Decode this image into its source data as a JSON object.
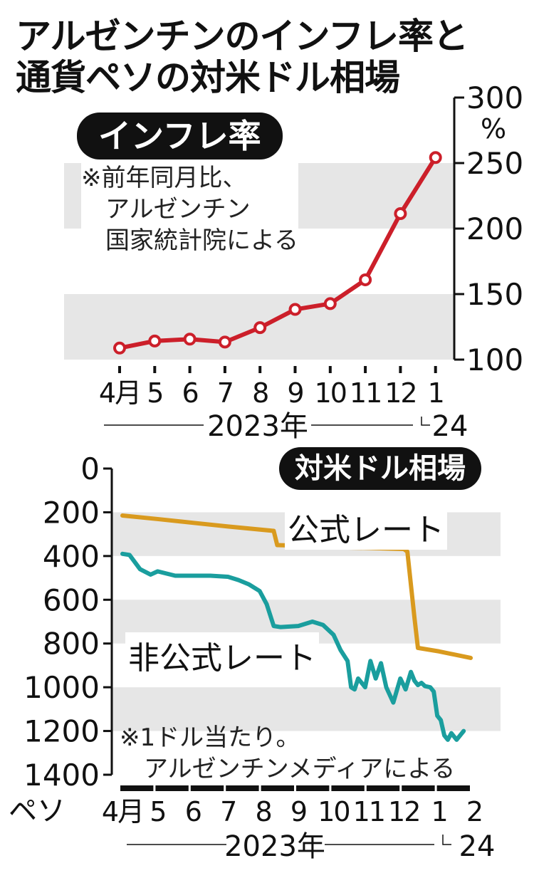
{
  "title": {
    "line1": "アルゼンチンのインフレ率と",
    "line2": "通貨ペソの対米ドル相場"
  },
  "chart_data": [
    {
      "type": "line",
      "label": "インフレ率",
      "note": [
        "※前年同月比、",
        "アルゼンチン",
        "国家統計院による"
      ],
      "x_labels": [
        "4月",
        "5",
        "6",
        "7",
        "8",
        "9",
        "10",
        "11",
        "12",
        "1"
      ],
      "year_labels": [
        "2023年",
        "24"
      ],
      "y_unit": "%",
      "ylim": [
        100,
        300
      ],
      "y_ticks": [
        100,
        150,
        200,
        250,
        300
      ],
      "series": [
        {
          "values": [
            108.8,
            114.2,
            115.6,
            113.4,
            124.4,
            138.3,
            142.7,
            160.9,
            211.4,
            254.2
          ]
        }
      ],
      "color": "#cc1f2a",
      "grid_bands": true,
      "y_axis_side": "right"
    },
    {
      "type": "line",
      "label": "対米ドル相場",
      "note": [
        "※1ドル当たり。",
        "アルゼンチンメディアによる"
      ],
      "x_labels": [
        "4月",
        "5",
        "6",
        "7",
        "8",
        "9",
        "10",
        "11",
        "12",
        "1",
        "2"
      ],
      "year_labels": [
        "2023年",
        "24"
      ],
      "y_unit": "ペソ",
      "ylim": [
        0,
        1400
      ],
      "y_inverted": true,
      "y_ticks": [
        0,
        200,
        400,
        600,
        800,
        1000,
        1200,
        1400
      ],
      "y_axis_side": "left",
      "series": [
        {
          "name": "公式レート",
          "color": "#d99a1e",
          "x": [
            0,
            1,
            2,
            3,
            4.3,
            4.4,
            5,
            6,
            7,
            8,
            8.1,
            8.3,
            8.4,
            9,
            9.9
          ],
          "values": [
            215,
            231,
            248,
            265,
            285,
            350,
            353,
            360,
            363,
            368,
            380,
            680,
            820,
            836,
            866
          ]
        },
        {
          "name": "非公式レート",
          "color": "#1a9e9e",
          "x": [
            0,
            0.2,
            0.5,
            0.8,
            1,
            1.5,
            2,
            2.5,
            3,
            3.3,
            3.6,
            3.9,
            4.1,
            4.3,
            4.5,
            5,
            5.4,
            5.7,
            6,
            6.2,
            6.4,
            6.5,
            6.6,
            6.7,
            6.9,
            7.05,
            7.2,
            7.35,
            7.5,
            7.7,
            7.9,
            8.05,
            8.2,
            8.3,
            8.4,
            8.5,
            8.6,
            8.75,
            8.85,
            8.95,
            9.05,
            9.15,
            9.25,
            9.35,
            9.5,
            9.7
          ],
          "values": [
            390,
            395,
            460,
            485,
            470,
            490,
            490,
            490,
            495,
            510,
            530,
            560,
            620,
            720,
            725,
            720,
            700,
            715,
            760,
            830,
            880,
            1000,
            1010,
            960,
            1000,
            880,
            960,
            890,
            1000,
            1070,
            960,
            1010,
            930,
            970,
            990,
            980,
            995,
            1000,
            1020,
            1130,
            1150,
            1220,
            1240,
            1210,
            1240,
            1200
          ]
        }
      ],
      "grid_bands": true
    }
  ]
}
